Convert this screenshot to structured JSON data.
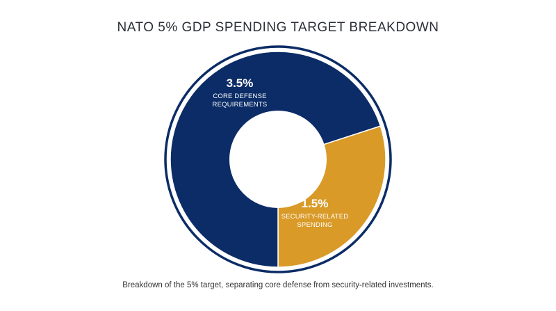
{
  "chart_data": {
    "type": "pie",
    "title": "NATO 5% GDP SPENDING TARGET BREAKDOWN",
    "caption": "Breakdown of the 5% target, separating core defense from security-related investments.",
    "slices": [
      {
        "value": 3.5,
        "value_label": "3.5%",
        "label_lines": [
          "CORE DEFENSE",
          "REQUIREMENTS"
        ],
        "color": "#0b2c66"
      },
      {
        "value": 1.5,
        "value_label": "1.5%",
        "label_lines": [
          "SECURITY-RELATED",
          "SPENDING"
        ],
        "color": "#d99a28"
      }
    ],
    "donut": true,
    "outer_ring_color": "#0b2c66"
  }
}
